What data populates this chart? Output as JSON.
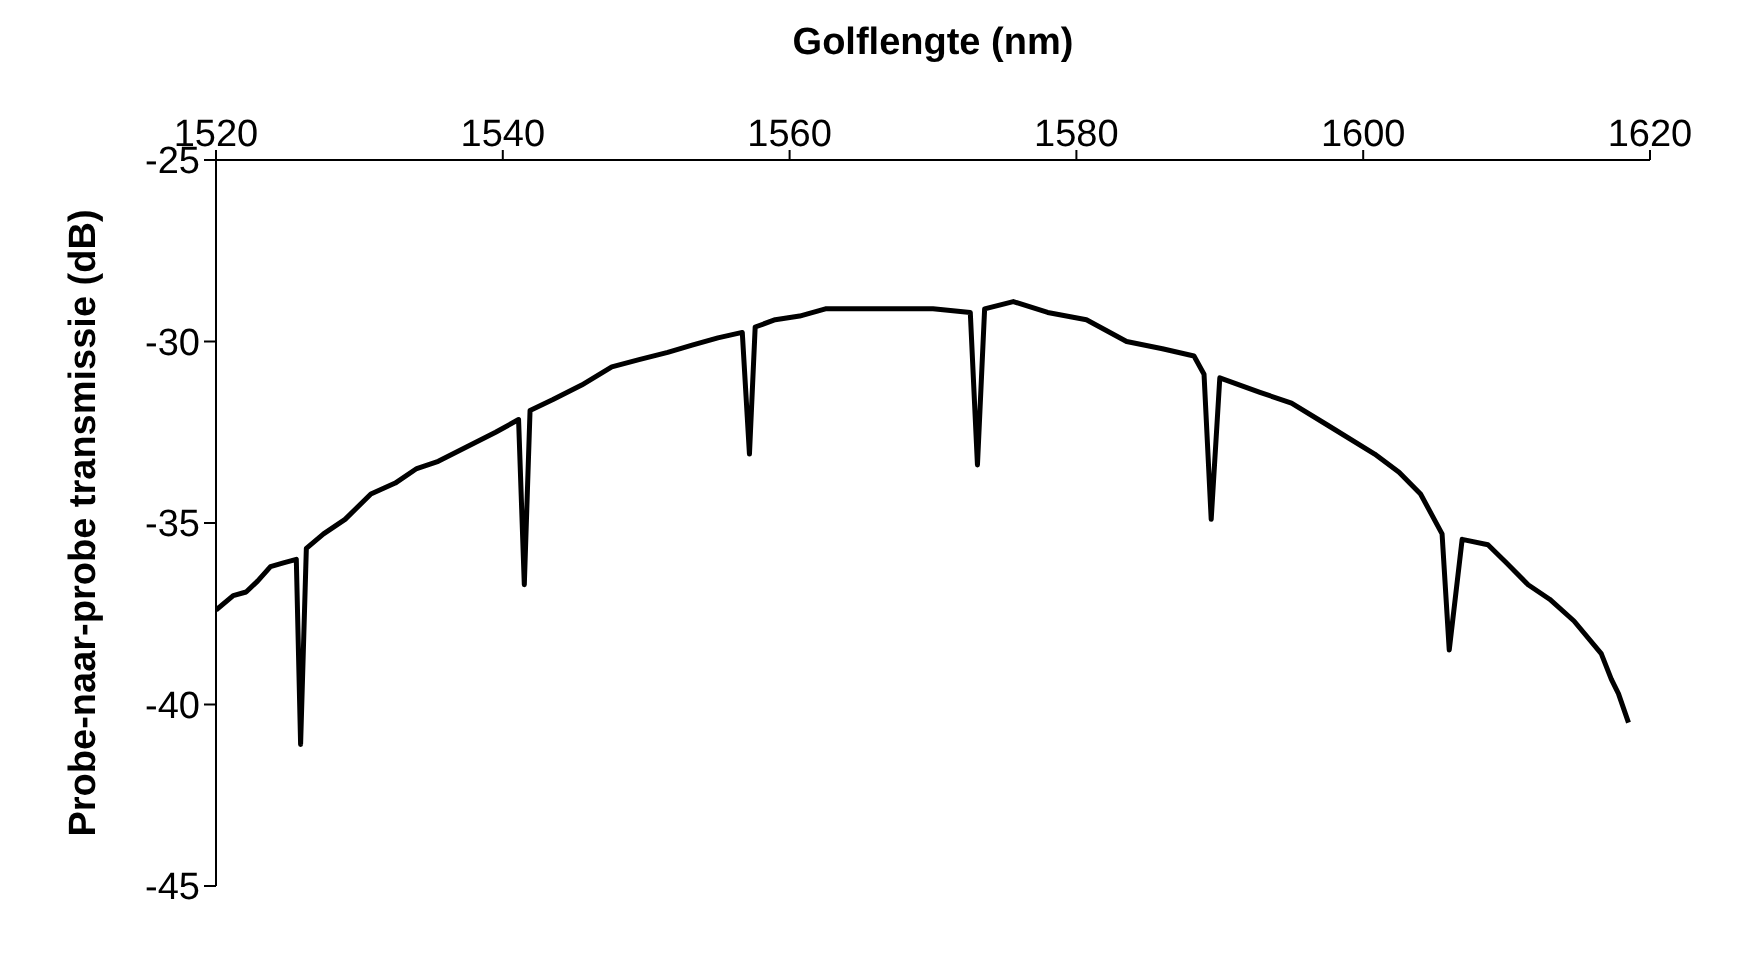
{
  "chart_data": {
    "type": "line",
    "xlabel": "Golflengte (nm)",
    "ylabel": "Probe-naar-probe transmissie (dB)",
    "xlim": [
      1520,
      1620
    ],
    "xticks": [
      1520,
      1540,
      1560,
      1580,
      1600,
      1620
    ],
    "ylim": [
      -45,
      -25
    ],
    "yticks": [
      -45,
      -40,
      -35,
      -30,
      -25
    ],
    "grid": false,
    "legend": false,
    "marker": "none",
    "line_style": "solid",
    "series": [
      {
        "color": "#000000",
        "x": [
          1520,
          1521.2,
          1522.1,
          1522.9,
          1523.8,
          1524.7,
          1525.6,
          1525.9,
          1526.3,
          1527.5,
          1529,
          1530.8,
          1532.5,
          1534,
          1535.5,
          1537.5,
          1539.5,
          1541.1,
          1541.5,
          1541.9,
          1543.5,
          1545.5,
          1547.6,
          1549.5,
          1551.5,
          1553.2,
          1555,
          1556.7,
          1557.2,
          1557.6,
          1559,
          1560.7,
          1562.5,
          1565,
          1567.5,
          1570,
          1572.6,
          1573.1,
          1573.6,
          1575.6,
          1578,
          1580.7,
          1583.5,
          1586,
          1588.2,
          1588.9,
          1589.4,
          1590,
          1592.8,
          1595,
          1597.5,
          1600.8,
          1602.5,
          1604,
          1605.5,
          1606,
          1606.9,
          1608.7,
          1610,
          1611.5,
          1613,
          1614.7,
          1616.6,
          1617.3,
          1617.8,
          1618.5
        ],
        "values": [
          -37.4,
          -37.0,
          -36.9,
          -36.6,
          -36.2,
          -36.1,
          -36.0,
          -41.1,
          -35.7,
          -35.3,
          -34.9,
          -34.2,
          -33.9,
          -33.5,
          -33.3,
          -32.9,
          -32.5,
          -32.15,
          -36.7,
          -31.9,
          -31.6,
          -31.2,
          -30.7,
          -30.5,
          -30.3,
          -30.1,
          -29.9,
          -29.75,
          -33.1,
          -29.6,
          -29.4,
          -29.3,
          -29.1,
          -29.1,
          -29.1,
          -29.1,
          -29.2,
          -33.4,
          -29.1,
          -28.9,
          -29.2,
          -29.4,
          -30.0,
          -30.2,
          -30.4,
          -30.9,
          -34.9,
          -31.0,
          -31.4,
          -31.7,
          -32.3,
          -33.1,
          -33.6,
          -34.2,
          -35.3,
          -38.5,
          -35.45,
          -35.6,
          -36.1,
          -36.7,
          -37.1,
          -37.7,
          -38.6,
          -39.3,
          -39.7,
          -40.5
        ]
      }
    ]
  }
}
